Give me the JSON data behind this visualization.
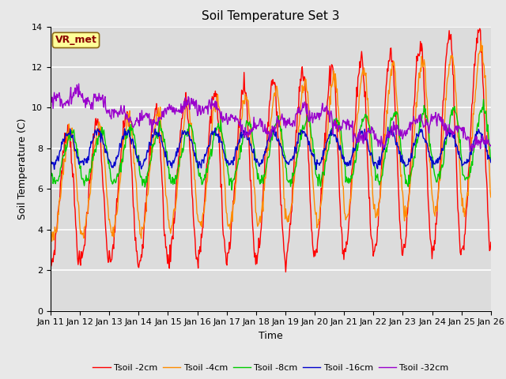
{
  "title": "Soil Temperature Set 3",
  "xlabel": "Time",
  "ylabel": "Soil Temperature (C)",
  "ylim": [
    0,
    14
  ],
  "yticks": [
    0,
    2,
    4,
    6,
    8,
    10,
    12,
    14
  ],
  "legend_labels": [
    "Tsoil -2cm",
    "Tsoil -4cm",
    "Tsoil -8cm",
    "Tsoil -16cm",
    "Tsoil -32cm"
  ],
  "line_colors": [
    "#ff0000",
    "#ff8c00",
    "#00cc00",
    "#0000cc",
    "#9900cc"
  ],
  "line_width": 1.0,
  "annotation_text": "VR_met",
  "annotation_color": "#8b0000",
  "annotation_bg": "#ffff99",
  "plot_bg_color": "#dcdcdc",
  "fig_bg_color": "#e8e8e8",
  "grid_color": "#ffffff",
  "n_days": 15,
  "start_day": 11,
  "points_per_day": 48,
  "title_fontsize": 11,
  "axis_fontsize": 9,
  "tick_fontsize": 8
}
